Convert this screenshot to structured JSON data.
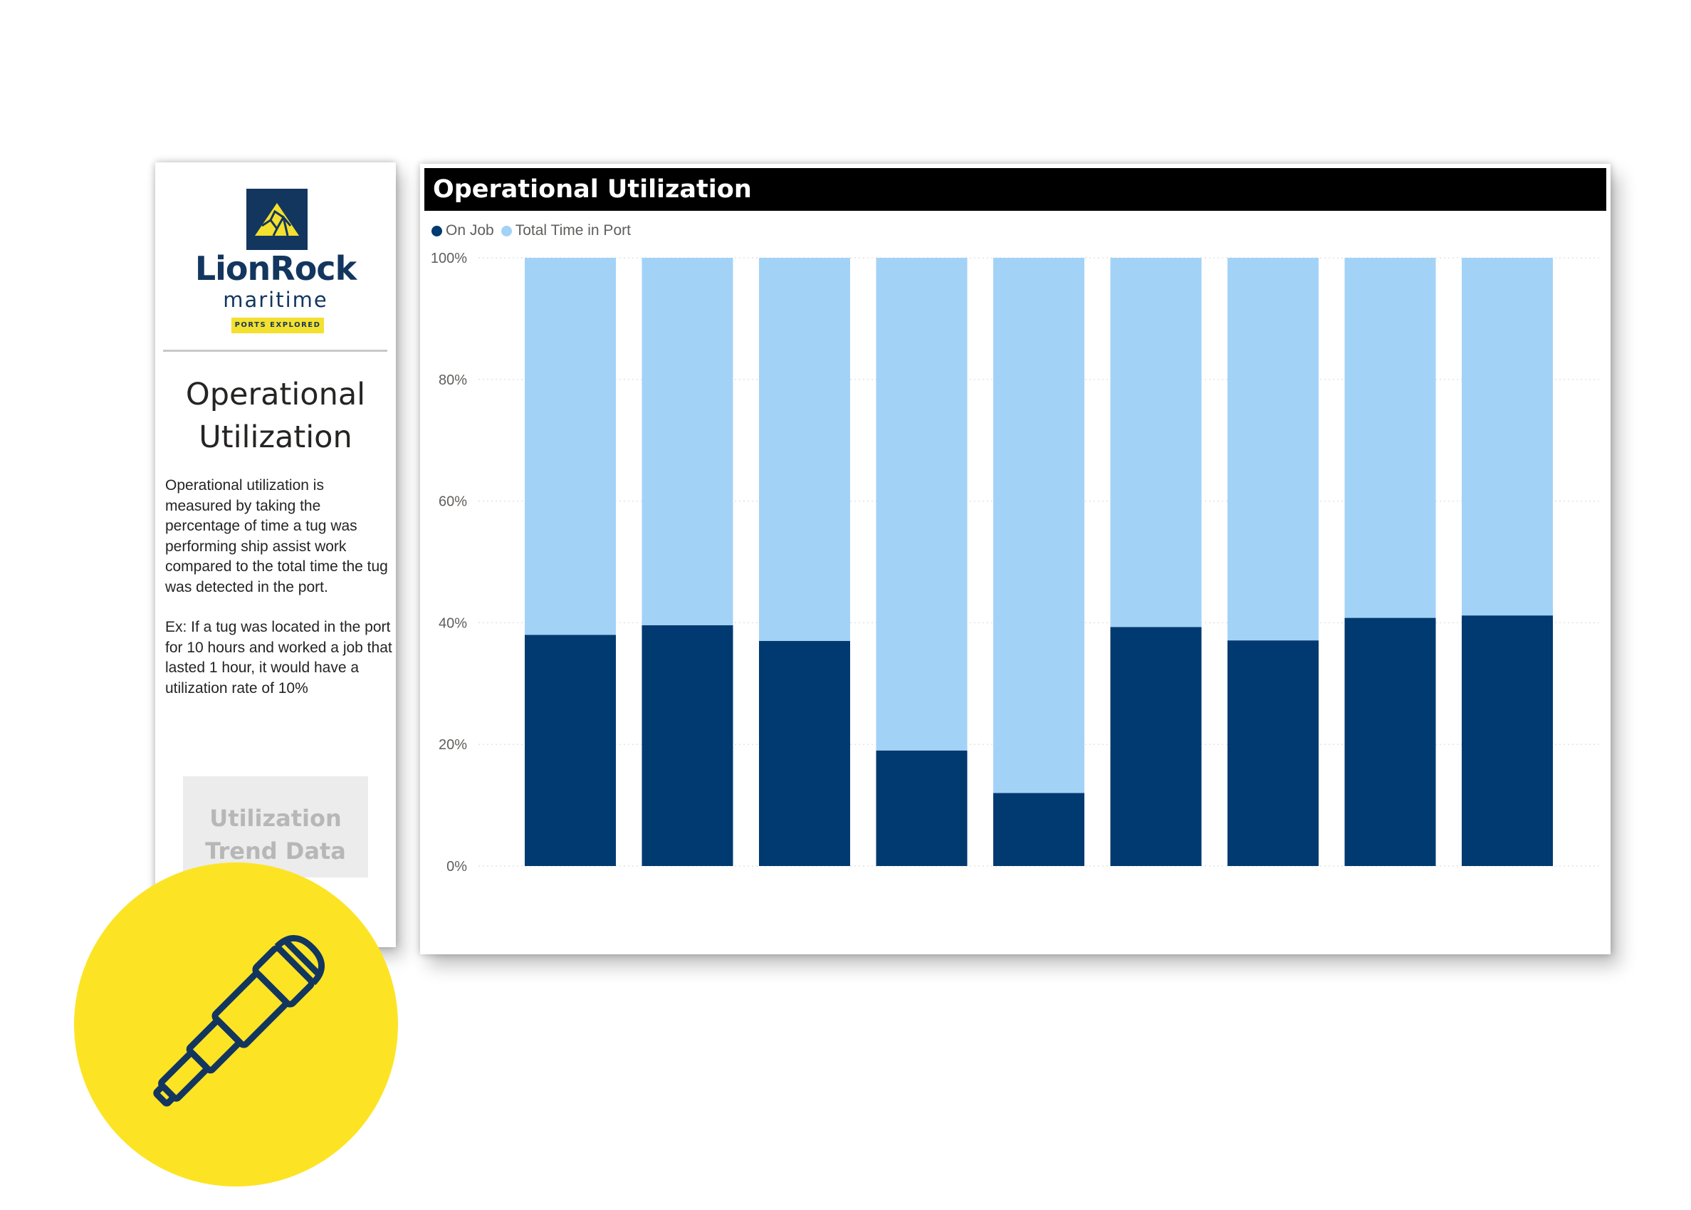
{
  "brand": {
    "name": "LionRock",
    "sub": "maritime",
    "tagline": "PORTS EXPLORED"
  },
  "side_panel": {
    "title_line1": "Operational",
    "title_line2": "Utilization",
    "description": "Operational utilization is measured by taking the percentage of time a tug was performing ship assist work compared to the total time the tug was detected in the port.",
    "example": "Ex: If a tug was located in the port for 10 hours and worked a job that lasted 1 hour, it would have a utilization rate of 10%",
    "button_line1": "Utilization",
    "button_line2": "Trend Data"
  },
  "chart": {
    "title": "Operational Utilization"
  },
  "colors": {
    "on_job": "#003a70",
    "total_time": "#a3d2f7",
    "brand_navy": "#13365f",
    "badge_yellow": "#fce424"
  },
  "icons": {
    "logo": "mountain-logo-icon",
    "badge": "telescope-icon"
  },
  "chart_data": {
    "type": "bar",
    "stacked": true,
    "title": "Operational Utilization",
    "legend_position": "top-left",
    "grid": true,
    "ylim": [
      0,
      100
    ],
    "yticks": [
      "0%",
      "20%",
      "40%",
      "60%",
      "80%",
      "100%"
    ],
    "categories": [
      "",
      "",
      "",
      "",
      "",
      "",
      "",
      "",
      ""
    ],
    "series": [
      {
        "name": "On Job",
        "color": "#003a70",
        "values": [
          38,
          39.6,
          37,
          19,
          12,
          39.3,
          37.1,
          40.8,
          41.2
        ]
      },
      {
        "name": "Total Time in Port",
        "color": "#a3d2f7",
        "values": [
          62,
          60.4,
          63,
          81,
          88,
          60.7,
          62.9,
          59.2,
          58.8
        ]
      }
    ]
  }
}
